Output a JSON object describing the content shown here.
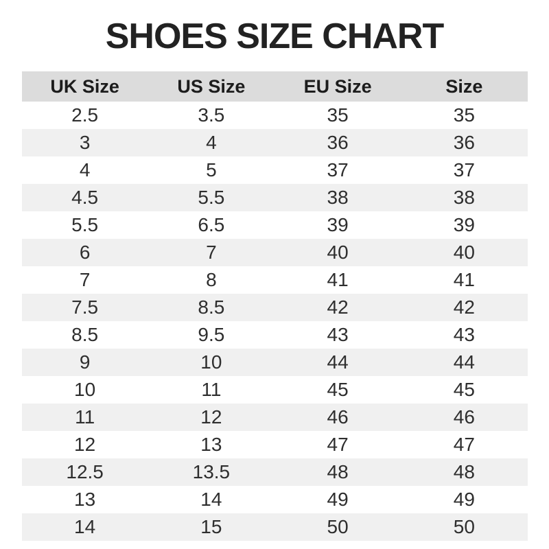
{
  "title": "SHOES SIZE CHART",
  "chart_data": {
    "type": "table",
    "title": "SHOES SIZE CHART",
    "columns": [
      "UK Size",
      "US Size",
      "EU Size",
      "Size"
    ],
    "rows": [
      [
        "2.5",
        "3.5",
        "35",
        "35"
      ],
      [
        "3",
        "4",
        "36",
        "36"
      ],
      [
        "4",
        "5",
        "37",
        "37"
      ],
      [
        "4.5",
        "5.5",
        "38",
        "38"
      ],
      [
        "5.5",
        "6.5",
        "39",
        "39"
      ],
      [
        "6",
        "7",
        "40",
        "40"
      ],
      [
        "7",
        "8",
        "41",
        "41"
      ],
      [
        "7.5",
        "8.5",
        "42",
        "42"
      ],
      [
        "8.5",
        "9.5",
        "43",
        "43"
      ],
      [
        "9",
        "10",
        "44",
        "44"
      ],
      [
        "10",
        "11",
        "45",
        "45"
      ],
      [
        "11",
        "12",
        "46",
        "46"
      ],
      [
        "12",
        "13",
        "47",
        "47"
      ],
      [
        "12.5",
        "13.5",
        "48",
        "48"
      ],
      [
        "13",
        "14",
        "49",
        "49"
      ],
      [
        "14",
        "15",
        "50",
        "50"
      ]
    ]
  },
  "colors": {
    "header_bg": "#dcdcdc",
    "row_alt_bg": "#f0f0f0",
    "row_bg": "#ffffff",
    "title_color": "#222222",
    "text_color": "#2e2e2e"
  }
}
